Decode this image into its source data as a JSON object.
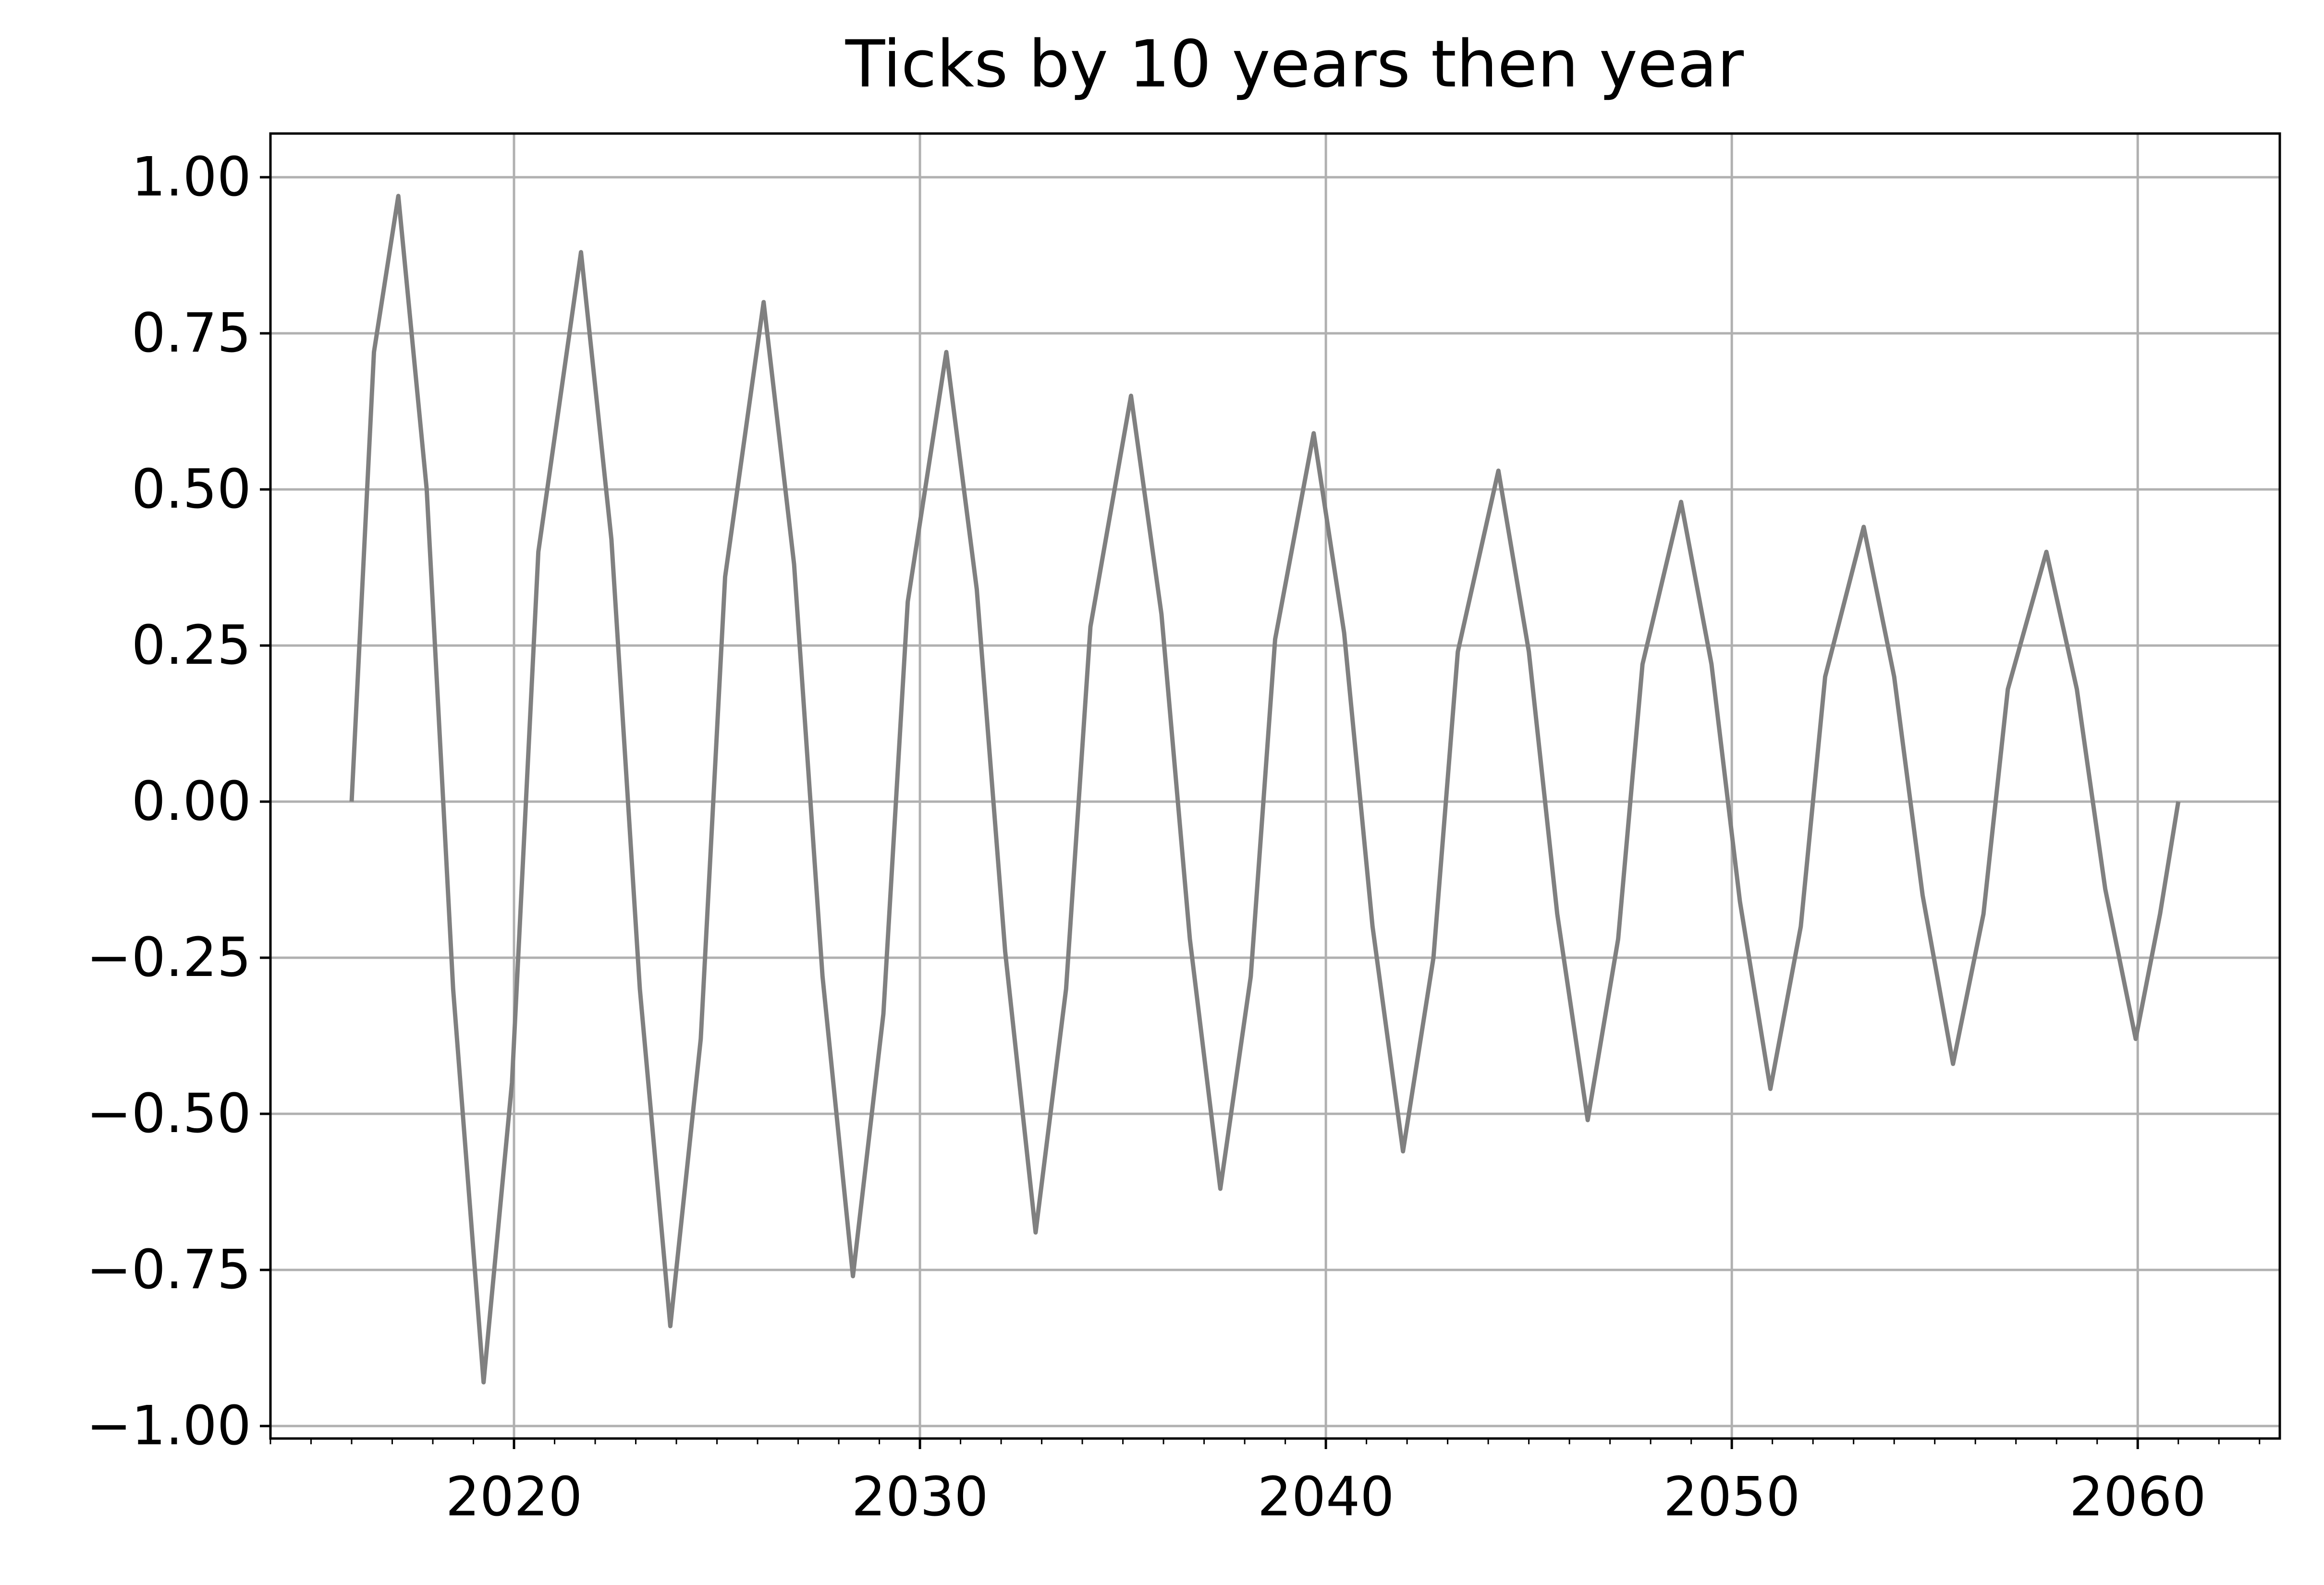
{
  "chart_data": {
    "type": "line",
    "title": "Ticks by 10 years then year",
    "xlabel": "",
    "ylabel": "",
    "xlim": [
      2014.0,
      2063.5
    ],
    "ylim": [
      -1.02,
      1.07
    ],
    "grid": true,
    "x_major_ticks": [
      2020,
      2030,
      2040,
      2050,
      2060
    ],
    "x_major_tick_labels": [
      "2020",
      "2030",
      "2040",
      "2050",
      "2060"
    ],
    "x_minor_tick_step": 1,
    "y_ticks": [
      1.0,
      0.75,
      0.5,
      0.25,
      0.0,
      -0.25,
      -0.5,
      -0.75,
      -1.0
    ],
    "y_tick_labels": [
      "1.00",
      "0.75",
      "0.50",
      "0.25",
      "0.00",
      "−0.25",
      "−0.50",
      "−0.75",
      "−1.00"
    ],
    "series": [
      {
        "name": "",
        "color": "#808080",
        "x": [
          2016.0,
          2016.55,
          2017.15,
          2017.85,
          2018.5,
          2019.25,
          2019.95,
          2020.6,
          2021.65,
          2022.4,
          2023.1,
          2023.85,
          2024.6,
          2025.2,
          2026.15,
          2026.9,
          2027.6,
          2028.35,
          2029.1,
          2029.7,
          2030.65,
          2031.4,
          2032.1,
          2032.85,
          2033.6,
          2034.2,
          2035.2,
          2035.95,
          2036.65,
          2037.4,
          2038.15,
          2038.75,
          2039.7,
          2040.45,
          2041.15,
          2041.9,
          2042.65,
          2043.25,
          2044.25,
          2045.0,
          2045.7,
          2046.45,
          2047.2,
          2047.8,
          2048.75,
          2049.5,
          2050.2,
          2050.95,
          2051.7,
          2052.3,
          2053.25,
          2054.0,
          2054.7,
          2055.45,
          2056.2,
          2056.8,
          2057.75,
          2058.5,
          2059.2,
          2059.95,
          2060.55,
          2061.0
        ],
        "y": [
          0.0,
          0.72,
          0.97,
          0.5,
          -0.3,
          -0.93,
          -0.45,
          0.4,
          0.88,
          0.42,
          -0.3,
          -0.84,
          -0.38,
          0.36,
          0.8,
          0.38,
          -0.28,
          -0.76,
          -0.34,
          0.32,
          0.72,
          0.34,
          -0.24,
          -0.69,
          -0.3,
          0.28,
          0.65,
          0.3,
          -0.22,
          -0.62,
          -0.28,
          0.26,
          0.59,
          0.27,
          -0.2,
          -0.56,
          -0.25,
          0.24,
          0.53,
          0.24,
          -0.18,
          -0.51,
          -0.22,
          0.22,
          0.48,
          0.22,
          -0.16,
          -0.46,
          -0.2,
          0.2,
          0.44,
          0.2,
          -0.15,
          -0.42,
          -0.18,
          0.18,
          0.4,
          0.18,
          -0.14,
          -0.38,
          -0.18,
          0.0
        ]
      }
    ]
  }
}
